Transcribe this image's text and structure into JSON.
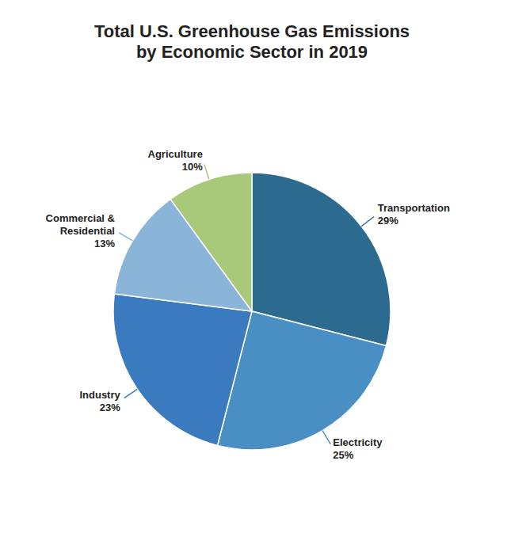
{
  "chart_data": {
    "type": "pie",
    "title": "Total U.S. Greenhouse Gas Emissions\nby Economic Sector in 2019",
    "categories": [
      "Transportation",
      "Electricity",
      "Industry",
      "Commercial &\nResidential",
      "Agriculture"
    ],
    "values": [
      29,
      25,
      23,
      13,
      10
    ],
    "value_labels": [
      "29%",
      "25%",
      "23%",
      "13%",
      "10%"
    ],
    "colors": [
      "#2d6a8f",
      "#4a8fc4",
      "#3a7abf",
      "#8ab4d8",
      "#a8c87a"
    ],
    "data_labels": true
  }
}
